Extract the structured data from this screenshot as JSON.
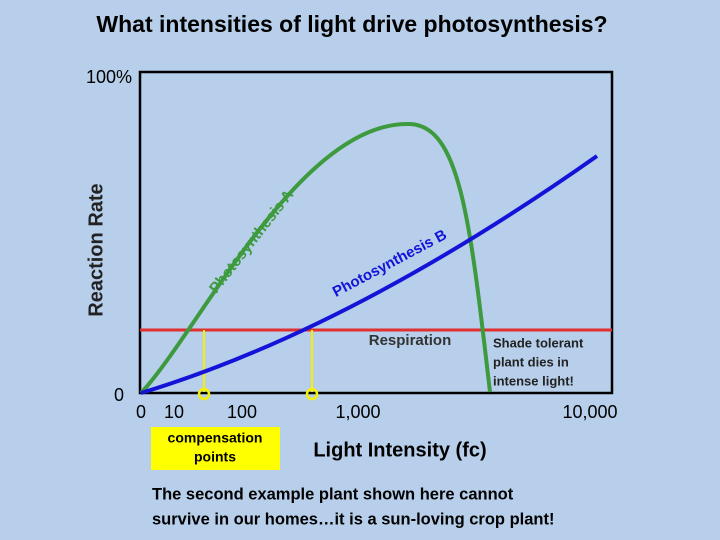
{
  "title": "What intensities of light drive photosynthesis?",
  "y_axis": {
    "label": "Reaction Rate",
    "top_label": "100%",
    "bottom_label": "0"
  },
  "x_axis": {
    "label": "Light Intensity (fc)",
    "tick_labels": [
      "0",
      "10",
      "100",
      "1,000",
      "10,000"
    ]
  },
  "curves": {
    "photosynthesis_a": "Photosynthesis A",
    "photosynthesis_b": "Photosynthesis B",
    "respiration": "Respiration"
  },
  "annotation": [
    "Shade tolerant",
    "plant dies in",
    "intense light!"
  ],
  "compensation_box": [
    "compensation",
    "points"
  ],
  "footer": [
    "The second example plant shown here cannot",
    "survive in our homes…it is a sun-loving crop plant!"
  ]
}
